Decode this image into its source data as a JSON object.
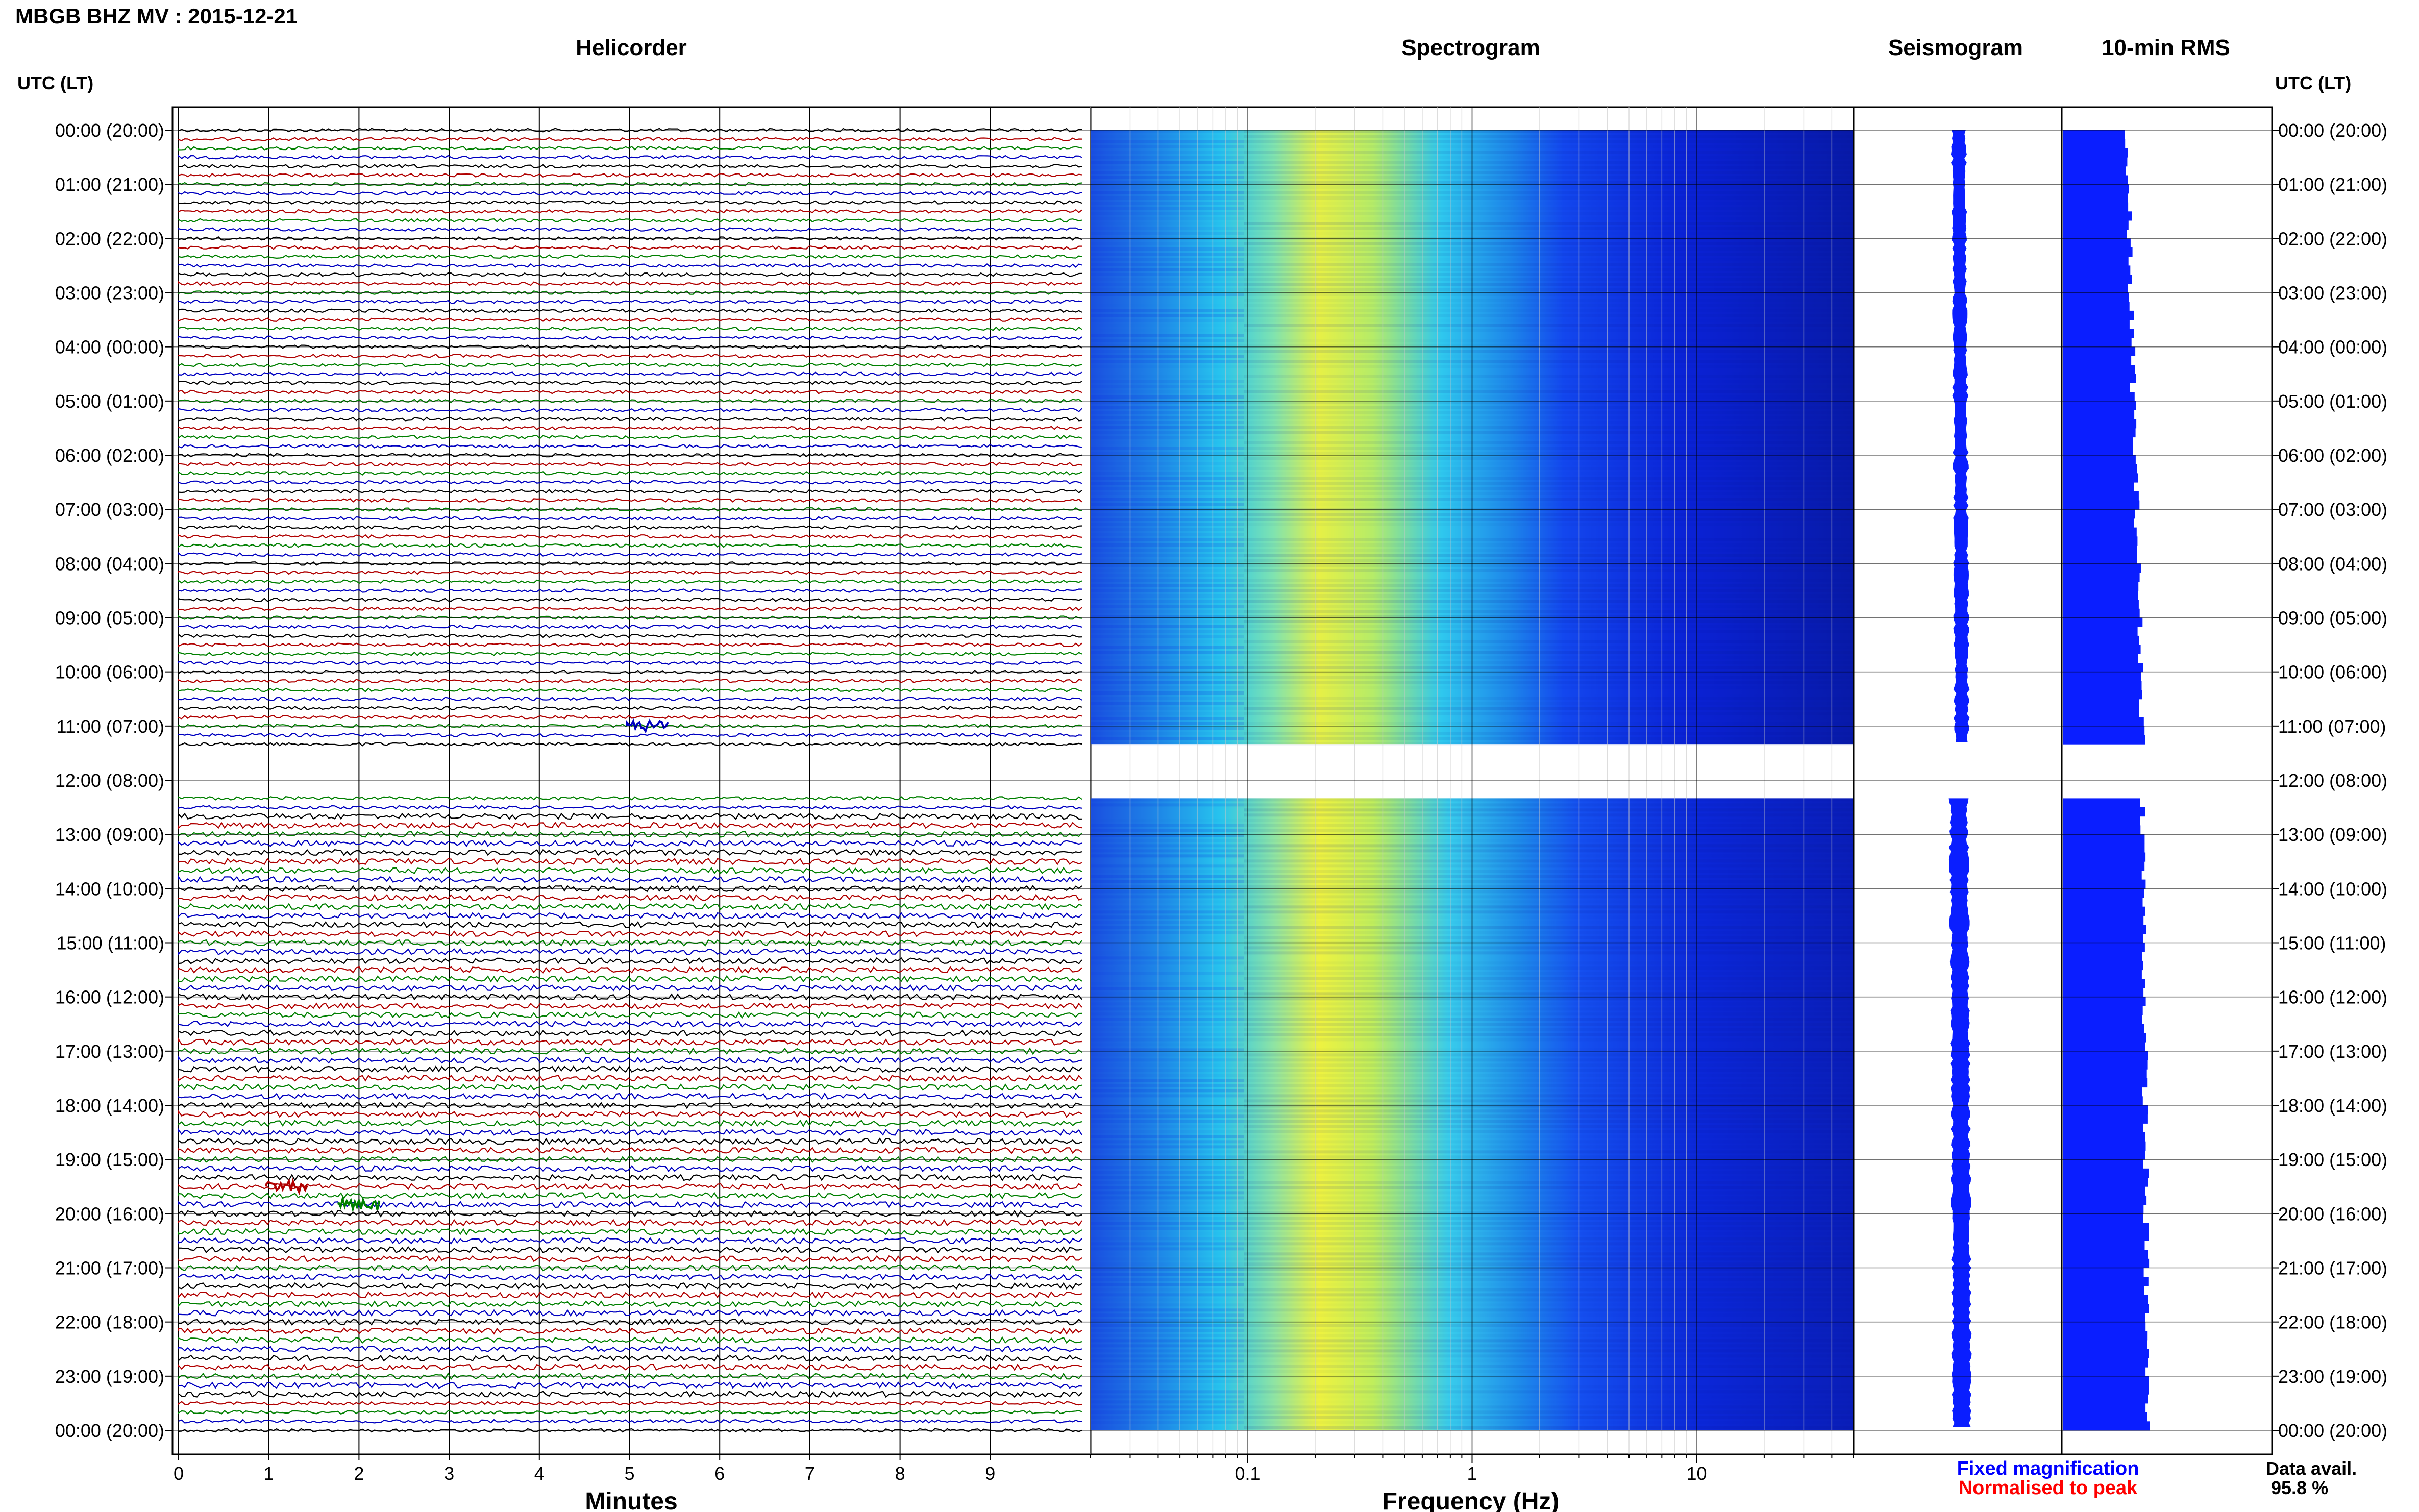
{
  "header": {
    "title": "MBGB BHZ MV : 2015-12-21",
    "utc_label_left": "UTC (LT)",
    "utc_label_right": "UTC (LT)"
  },
  "panels": {
    "helicorder": "Helicorder",
    "spectrogram": "Spectrogram",
    "seismogram": "Seismogram",
    "rms": "10-min RMS"
  },
  "axes": {
    "minutes_label": "Minutes",
    "minutes_ticks": [
      "0",
      "1",
      "2",
      "3",
      "4",
      "5",
      "6",
      "7",
      "8",
      "9"
    ],
    "frequency_label": "Frequency (Hz)",
    "frequency_ticks": [
      {
        "label": "0.1",
        "value": 0.1
      },
      {
        "label": "1",
        "value": 1
      },
      {
        "label": "10",
        "value": 10
      }
    ]
  },
  "time_labels": [
    "00:00 (20:00)",
    "01:00 (21:00)",
    "02:00 (22:00)",
    "03:00 (23:00)",
    "04:00 (00:00)",
    "05:00 (01:00)",
    "06:00 (02:00)",
    "07:00 (03:00)",
    "08:00 (04:00)",
    "09:00 (05:00)",
    "10:00 (06:00)",
    "11:00 (07:00)",
    "12:00 (08:00)",
    "13:00 (09:00)",
    "14:00 (10:00)",
    "15:00 (11:00)",
    "16:00 (12:00)",
    "17:00 (13:00)",
    "18:00 (14:00)",
    "19:00 (15:00)",
    "20:00 (16:00)",
    "21:00 (17:00)",
    "22:00 (18:00)",
    "23:00 (19:00)",
    "00:00 (20:00)"
  ],
  "legend": {
    "fixed": "Fixed magnification",
    "normalised": "Normalised to peak",
    "fixed_color": "#0000ff",
    "normalised_color": "#ff0000"
  },
  "data_availability": {
    "label": "Data avail.",
    "value": "95.8 %"
  },
  "colors": {
    "trace_cycle": [
      "#000000",
      "#b00000",
      "#008000",
      "#0000c0"
    ],
    "rms_bar": "#0a1eff",
    "seismogram": "#0a1eff"
  },
  "chart_data": {
    "type": "heatmap",
    "title": "MBGB BHZ MV : 2015-12-21",
    "helicorder": {
      "xlabel": "Minutes",
      "xlim": [
        0,
        10
      ],
      "rows_per_hour": 6,
      "hours_range": [
        "00:00",
        "24:00"
      ],
      "data_gap": {
        "start_hour": 11.333,
        "end_hour": 12.333
      },
      "events": [
        {
          "hour": 19.5,
          "minute": 1.2,
          "color": "#b00000"
        },
        {
          "hour": 19.83,
          "minute": 2.0,
          "color": "#008000"
        },
        {
          "hour": 11.0,
          "minute": 5.2,
          "color": "#0000c0"
        }
      ]
    },
    "spectrogram": {
      "xlabel": "Frequency (Hz)",
      "xscale": "log",
      "xlim": [
        0.02,
        50
      ],
      "peak_frequency_hz": 0.3
    },
    "rms": {
      "title": "10-min RMS",
      "segments": [
        {
          "start_hour": 0.0,
          "end_hour": 11.333,
          "level_start": 0.3,
          "level_end": 0.38
        },
        {
          "start_hour": 12.333,
          "end_hour": 24.0,
          "level_start": 0.38,
          "level_end": 0.4
        }
      ]
    }
  }
}
